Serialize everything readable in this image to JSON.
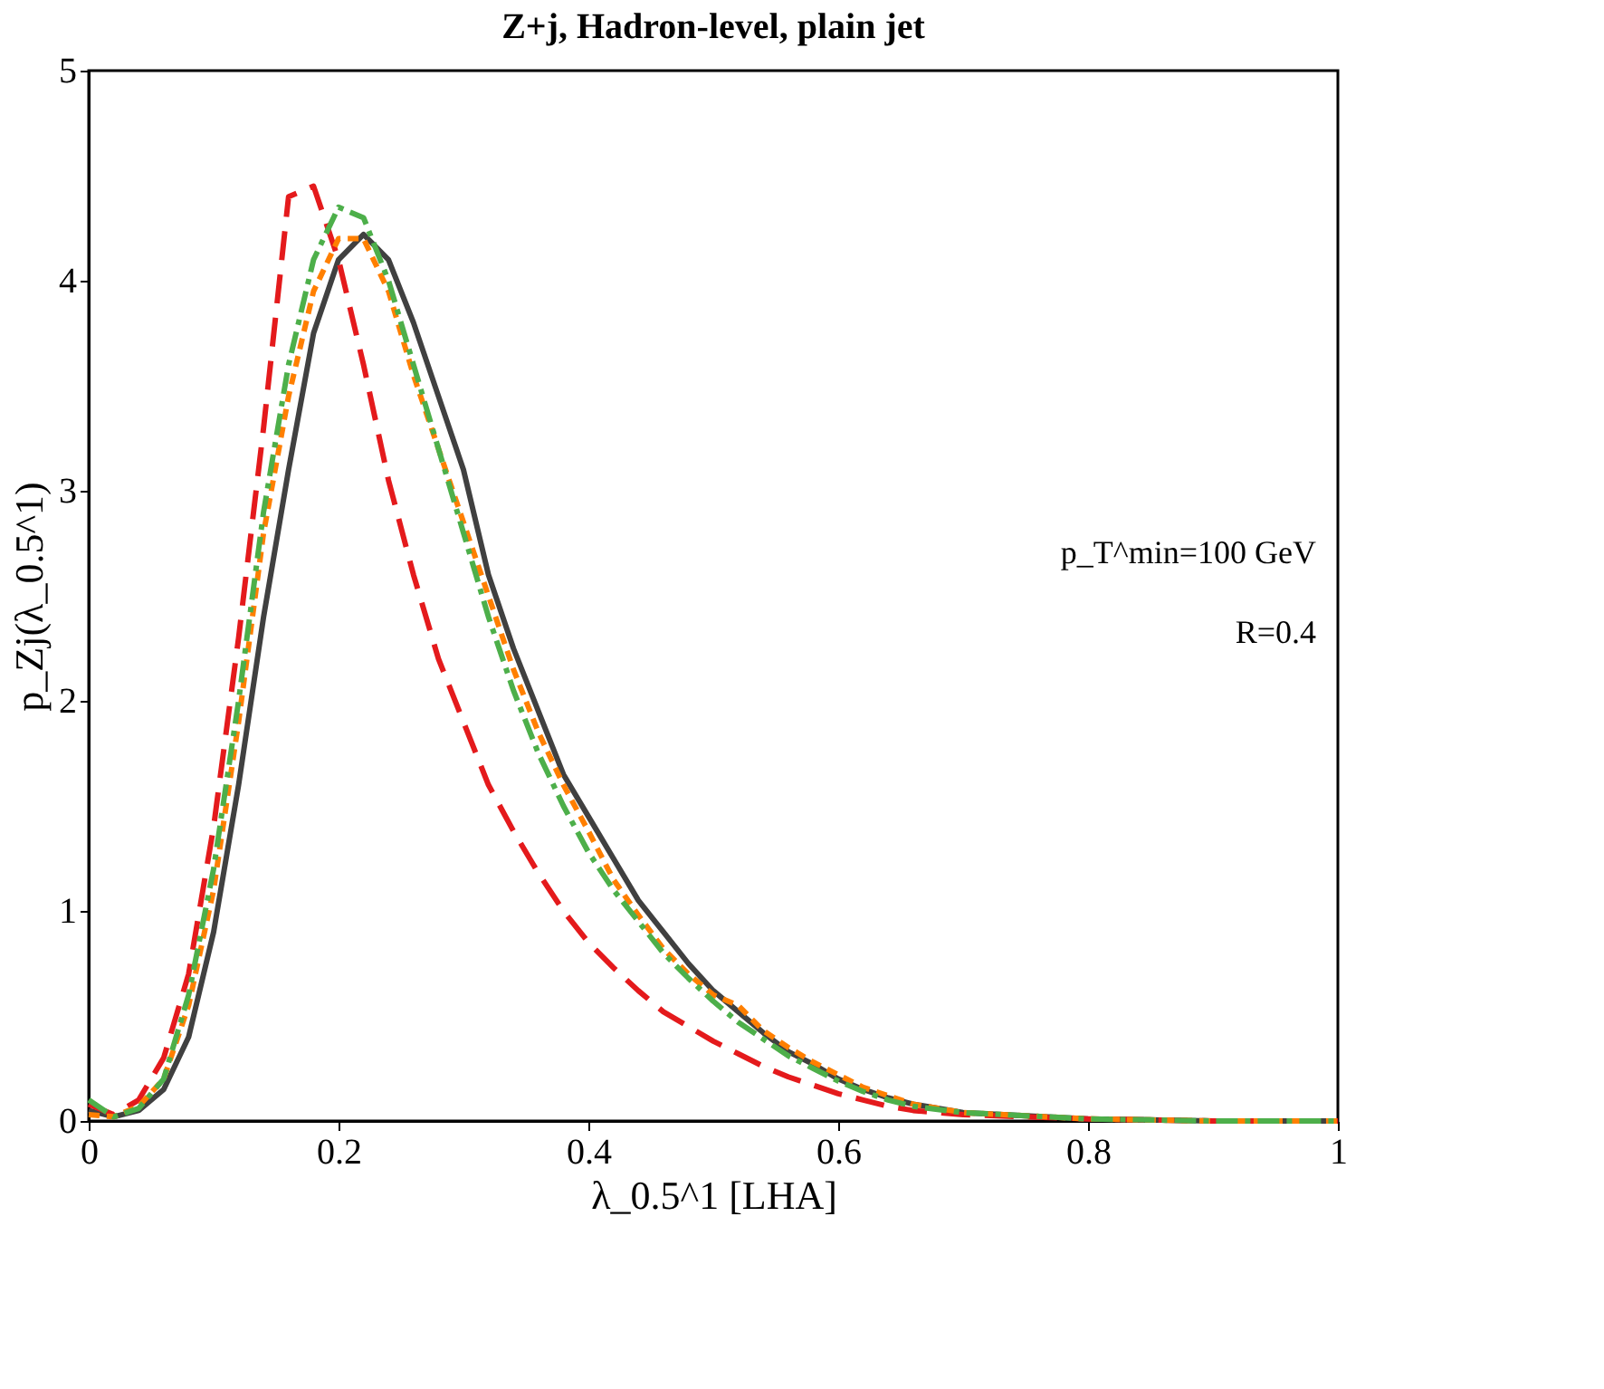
{
  "chart_data": {
    "type": "line",
    "title": "Z+j, Hadron-level, plain jet",
    "xlabel": "λ_0.5^1 [LHA]",
    "ylabel": "p_Zj(λ_0.5^1)",
    "xlim": [
      0,
      1
    ],
    "xticks": [
      0,
      0.2,
      0.4,
      0.6,
      0.8,
      1
    ],
    "ylim": [
      0,
      5
    ],
    "yticks": [
      0,
      1,
      2,
      3,
      4,
      5
    ],
    "grid": false,
    "annotations": [
      "p_T^min=100 GeV",
      "R=0.4"
    ],
    "x": [
      0,
      0.02,
      0.04,
      0.06,
      0.08,
      0.1,
      0.12,
      0.14,
      0.16,
      0.18,
      0.2,
      0.22,
      0.24,
      0.26,
      0.28,
      0.3,
      0.32,
      0.34,
      0.36,
      0.38,
      0.4,
      0.42,
      0.44,
      0.46,
      0.48,
      0.5,
      0.52,
      0.54,
      0.56,
      0.58,
      0.6,
      0.62,
      0.64,
      0.66,
      0.7,
      0.8,
      0.9,
      1.0
    ],
    "series": [
      {
        "color": "#404040",
        "line_style": "solid",
        "values": [
          0.05,
          0.02,
          0.05,
          0.15,
          0.4,
          0.9,
          1.6,
          2.4,
          3.1,
          3.75,
          4.1,
          4.22,
          4.1,
          3.8,
          3.45,
          3.1,
          2.6,
          2.25,
          1.95,
          1.65,
          1.45,
          1.25,
          1.05,
          0.9,
          0.75,
          0.62,
          0.52,
          0.42,
          0.33,
          0.27,
          0.2,
          0.15,
          0.11,
          0.08,
          0.04,
          0.01,
          0,
          0
        ]
      },
      {
        "color": "#e41a1c",
        "line_style": "dashed",
        "values": [
          0.08,
          0.03,
          0.1,
          0.3,
          0.7,
          1.4,
          2.3,
          3.3,
          4.4,
          4.45,
          4.1,
          3.6,
          3.05,
          2.6,
          2.2,
          1.9,
          1.6,
          1.38,
          1.18,
          1.0,
          0.85,
          0.73,
          0.62,
          0.52,
          0.45,
          0.38,
          0.32,
          0.26,
          0.21,
          0.17,
          0.13,
          0.1,
          0.07,
          0.05,
          0.03,
          0.01,
          0,
          0
        ]
      },
      {
        "color": "#ff7f00",
        "line_style": "dotted",
        "values": [
          0.03,
          0.02,
          0.07,
          0.2,
          0.55,
          1.1,
          1.9,
          2.8,
          3.45,
          3.95,
          4.2,
          4.2,
          3.95,
          3.55,
          3.2,
          2.85,
          2.5,
          2.15,
          1.85,
          1.6,
          1.38,
          1.15,
          0.98,
          0.82,
          0.7,
          0.6,
          0.55,
          0.43,
          0.35,
          0.28,
          0.22,
          0.16,
          0.12,
          0.08,
          0.04,
          0.01,
          0,
          0
        ]
      },
      {
        "color": "#4daf4a",
        "line_style": "dashdot",
        "values": [
          0.1,
          0.02,
          0.06,
          0.2,
          0.6,
          1.2,
          2.0,
          2.9,
          3.6,
          4.1,
          4.35,
          4.3,
          4.0,
          3.6,
          3.2,
          2.8,
          2.4,
          2.05,
          1.75,
          1.5,
          1.28,
          1.1,
          0.95,
          0.8,
          0.68,
          0.57,
          0.47,
          0.39,
          0.31,
          0.25,
          0.19,
          0.14,
          0.1,
          0.07,
          0.04,
          0.01,
          0,
          0
        ]
      }
    ]
  }
}
